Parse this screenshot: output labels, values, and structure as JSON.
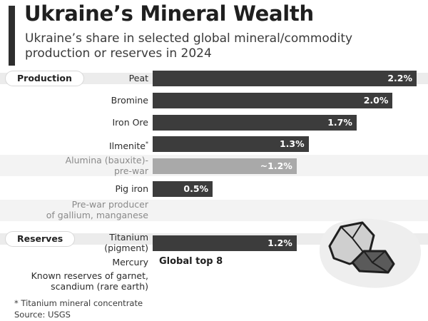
{
  "header": {
    "title": "Ukraine’s Mineral Wealth",
    "subtitle": "Ukraine’s share in selected global mineral/commodity production or reserves in 2024"
  },
  "sections": {
    "production": "Production",
    "reserves": "Reserves"
  },
  "chart_data": {
    "type": "bar",
    "orientation": "horizontal",
    "title": "Ukraine’s Mineral Wealth",
    "subtitle": "Ukraine’s share in selected global mineral/commodity production or reserves in 2024",
    "unit": "%",
    "xlim": [
      0,
      2.2
    ],
    "grid": false,
    "rows": [
      {
        "category": "Peat",
        "value": 2.2,
        "label": "2.2%",
        "group": "Production"
      },
      {
        "category": "Bromine",
        "value": 2.0,
        "label": "2.0%",
        "group": "Production"
      },
      {
        "category": "Iron Ore",
        "value": 1.7,
        "label": "1.7%",
        "group": "Production"
      },
      {
        "category": "Ilmenite",
        "marker": "*",
        "value": 1.3,
        "label": "1.3%",
        "group": "Production"
      },
      {
        "category": "Alumina (bauxite)-\npre-war",
        "value": 1.2,
        "label": "~1.2%",
        "group": "Production",
        "muted": true
      },
      {
        "category": "Pig iron",
        "value": 0.5,
        "label": "0.5%",
        "group": "Production"
      },
      {
        "category": "Pre-war producer\nof gallium, manganese",
        "value": null,
        "label": "",
        "group": "Production",
        "muted": true
      },
      {
        "category": "Titanium\n(pigment)",
        "value": 1.2,
        "label": "1.2%",
        "group": "Reserves"
      },
      {
        "category": "Mercury",
        "value": null,
        "label": "Global top 8",
        "group": "Reserves"
      },
      {
        "category": "Known reserves of garnet,\nscandium (rare earth)",
        "value": null,
        "label": "",
        "group": "Reserves"
      }
    ]
  },
  "footnotes": {
    "note": "* Titanium mineral concentrate",
    "source": "Source: USGS"
  },
  "colors": {
    "bar": "#3c3c3c",
    "bar_muted": "#a9a9a9",
    "text": "#2b2b2b",
    "text_muted": "#8a8a8a",
    "background": "#ffffff",
    "stripe": "#f3f3f3"
  },
  "icons": {
    "decoration": "mineral-rocks-icon"
  }
}
